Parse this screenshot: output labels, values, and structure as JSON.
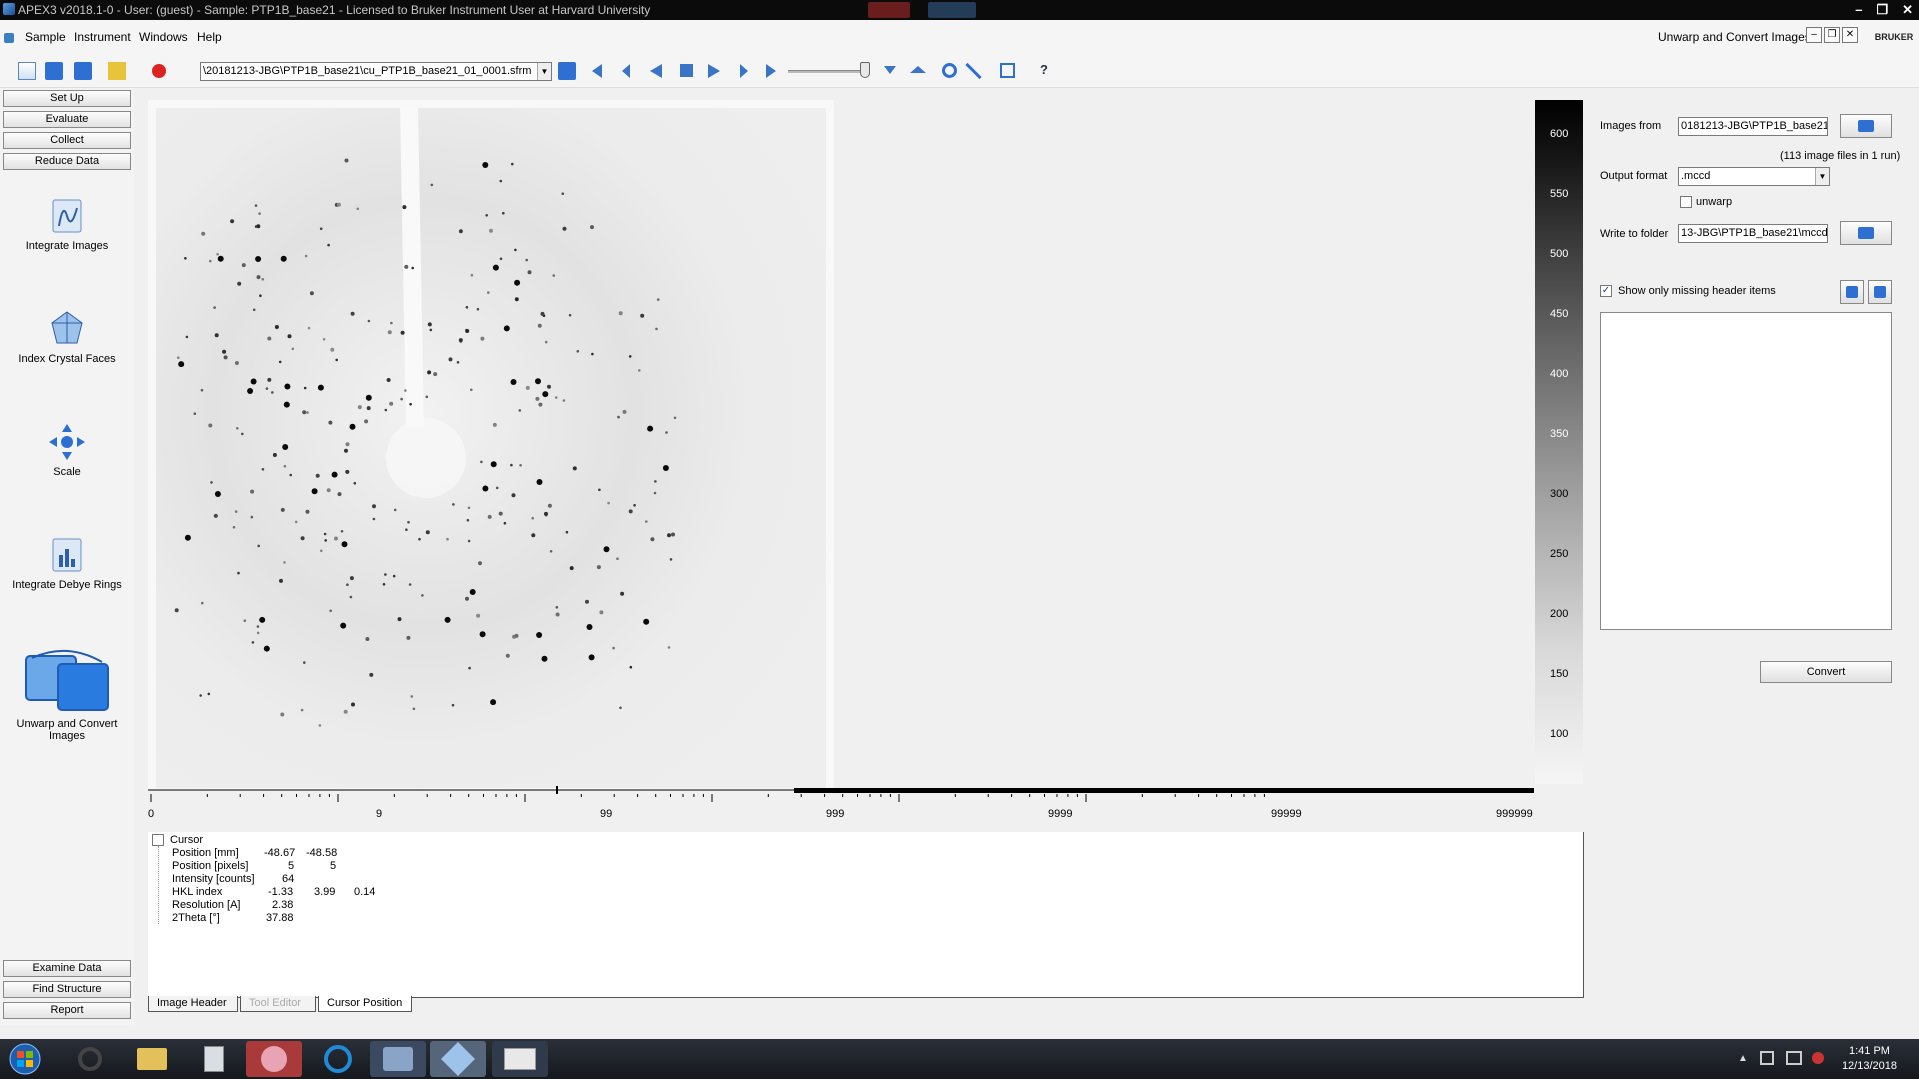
{
  "window": {
    "title": "APEX3 v2018.1-0 - User: (guest) - Sample: PTP1B_base21 - Licensed to Bruker Instrument User at Harvard University",
    "controls": [
      "–",
      "❐",
      "✕"
    ]
  },
  "menu": {
    "items": [
      "Sample",
      "Instrument",
      "Windows",
      "Help"
    ],
    "right_title": "Unwarp and Convert Images",
    "mdi_controls": [
      "–",
      "❐",
      "✕"
    ],
    "logo": "BRUKER"
  },
  "toolbar": {
    "file_path": "\\20181213-JBG\\PTP1B_base21\\cu_PTP1B_base21_01_0001.sfrm"
  },
  "nav": {
    "top_buttons": [
      "Set Up",
      "Evaluate",
      "Collect",
      "Reduce Data"
    ],
    "tools": [
      {
        "label": "Integrate Images",
        "icon": "integrate-images-icon"
      },
      {
        "label": "Index Crystal Faces",
        "icon": "index-crystal-faces-icon"
      },
      {
        "label": "Scale",
        "icon": "scale-icon"
      },
      {
        "label": "Integrate Debye Rings",
        "icon": "integrate-debye-rings-icon"
      },
      {
        "label": "Unwarp and Convert Images",
        "icon": "unwarp-convert-icon"
      }
    ],
    "bottom_buttons": [
      "Examine Data",
      "Find Structure",
      "Report"
    ]
  },
  "colorscale": {
    "labels": [
      "600",
      "550",
      "500",
      "450",
      "400",
      "350",
      "300",
      "250",
      "200",
      "150",
      "100"
    ]
  },
  "histogram": {
    "ticks": [
      "0",
      "9",
      "99",
      "999",
      "9999",
      "99999",
      "999999"
    ]
  },
  "cursor": {
    "title": "Cursor",
    "rows": [
      {
        "label": "Position [mm]",
        "v1": "-48.67",
        "v2": "-48.58",
        "v3": ""
      },
      {
        "label": "Position [pixels]",
        "v1": "5",
        "v2": "5",
        "v3": ""
      },
      {
        "label": "Intensity [counts]",
        "v1": "64",
        "v2": "",
        "v3": ""
      },
      {
        "label": "HKL index",
        "v1": "-1.33",
        "v2": "3.99",
        "v3": "0.14"
      },
      {
        "label": "Resolution [A]",
        "v1": "2.38",
        "v2": "",
        "v3": ""
      },
      {
        "label": "2Theta [°]",
        "v1": "37.88",
        "v2": "",
        "v3": ""
      }
    ]
  },
  "tabs": [
    "Image Header",
    "Tool Editor",
    "Cursor Position"
  ],
  "right": {
    "images_from_label": "Images from",
    "images_from_value": "0181213-JBG\\PTP1B_base21",
    "image_count": "(113 image files in 1 run)",
    "output_format_label": "Output format",
    "output_format_value": ".mccd",
    "unwarp_label": "unwarp",
    "write_folder_label": "Write to folder",
    "write_folder_value": "13-JBG\\PTP1B_base21\\mccd",
    "show_missing_label": "Show only missing header items",
    "convert_label": "Convert"
  },
  "taskbar": {
    "time": "1:41 PM",
    "date": "12/13/2018"
  },
  "colors": {
    "titlebar": "#0b0b0b",
    "accent": "#2e6fd1"
  }
}
